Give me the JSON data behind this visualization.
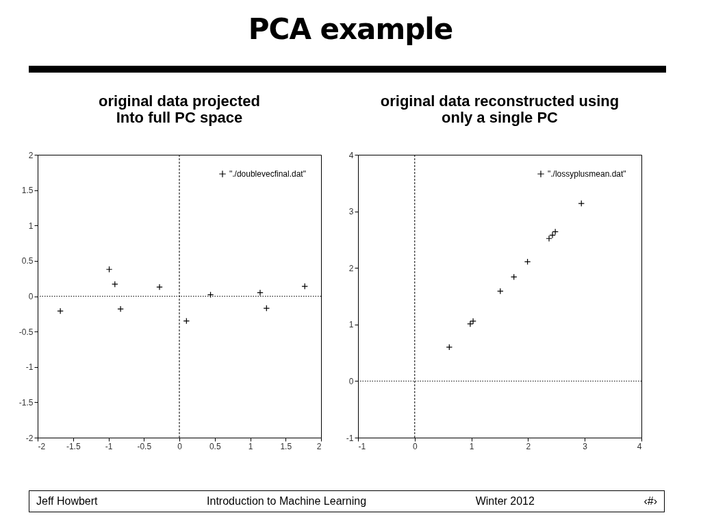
{
  "chart_data": [
    {
      "type": "scatter",
      "title": "original data projected\nInto full PC space",
      "annotations": [
        "PCA example",
        "Jeff Howbert",
        "Introduction to Machine Learning",
        "Winter 2012",
        "‹#›"
      ],
      "series": [
        {
          "name": "\"./doublevecfinal.dat\"",
          "color": "#000000",
          "x": [
            -1.68,
            -0.99,
            -0.91,
            -0.83,
            -0.28,
            0.1,
            0.44,
            1.14,
            1.23,
            1.77
          ],
          "values": [
            -0.21,
            0.38,
            0.17,
            -0.18,
            0.13,
            -0.35,
            0.02,
            0.05,
            -0.17,
            0.14
          ]
        }
      ],
      "xlim": [
        -2,
        2
      ],
      "xticks": [
        -2,
        -1.5,
        -1,
        -0.5,
        0,
        0.5,
        1,
        1.5,
        2
      ],
      "ylim": [
        -2,
        2
      ],
      "yticks": [
        -2,
        -1.5,
        -1,
        -0.5,
        0,
        0.5,
        1,
        1.5,
        2
      ],
      "ref_lines": [
        {
          "axis": "x",
          "value": 0,
          "line_style": "dashed"
        },
        {
          "axis": "y",
          "value": 0,
          "line_style": "dotted"
        }
      ],
      "marker": "cross",
      "legend": "top right"
    },
    {
      "type": "scatter",
      "title": "original data reconstructed using\nonly a single PC",
      "series": [
        {
          "name": "\"./lossyplusmean.dat\"",
          "color": "#000000",
          "x": [
            0.61,
            0.98,
            1.03,
            1.51,
            1.75,
            1.99,
            2.37,
            2.43,
            2.48,
            2.94
          ],
          "values": [
            0.6,
            1.01,
            1.06,
            1.59,
            1.84,
            2.11,
            2.52,
            2.58,
            2.64,
            3.14
          ]
        }
      ],
      "xlim": [
        -1,
        4
      ],
      "xticks": [
        -1,
        0,
        1,
        2,
        3,
        4
      ],
      "ylim": [
        -1,
        4
      ],
      "yticks": [
        -1,
        0,
        1,
        2,
        3,
        4
      ],
      "ref_lines": [
        {
          "axis": "x",
          "value": 0,
          "line_style": "dashed"
        },
        {
          "axis": "y",
          "value": 0,
          "line_style": "dotted"
        }
      ],
      "marker": "cross",
      "legend": "top right"
    }
  ]
}
